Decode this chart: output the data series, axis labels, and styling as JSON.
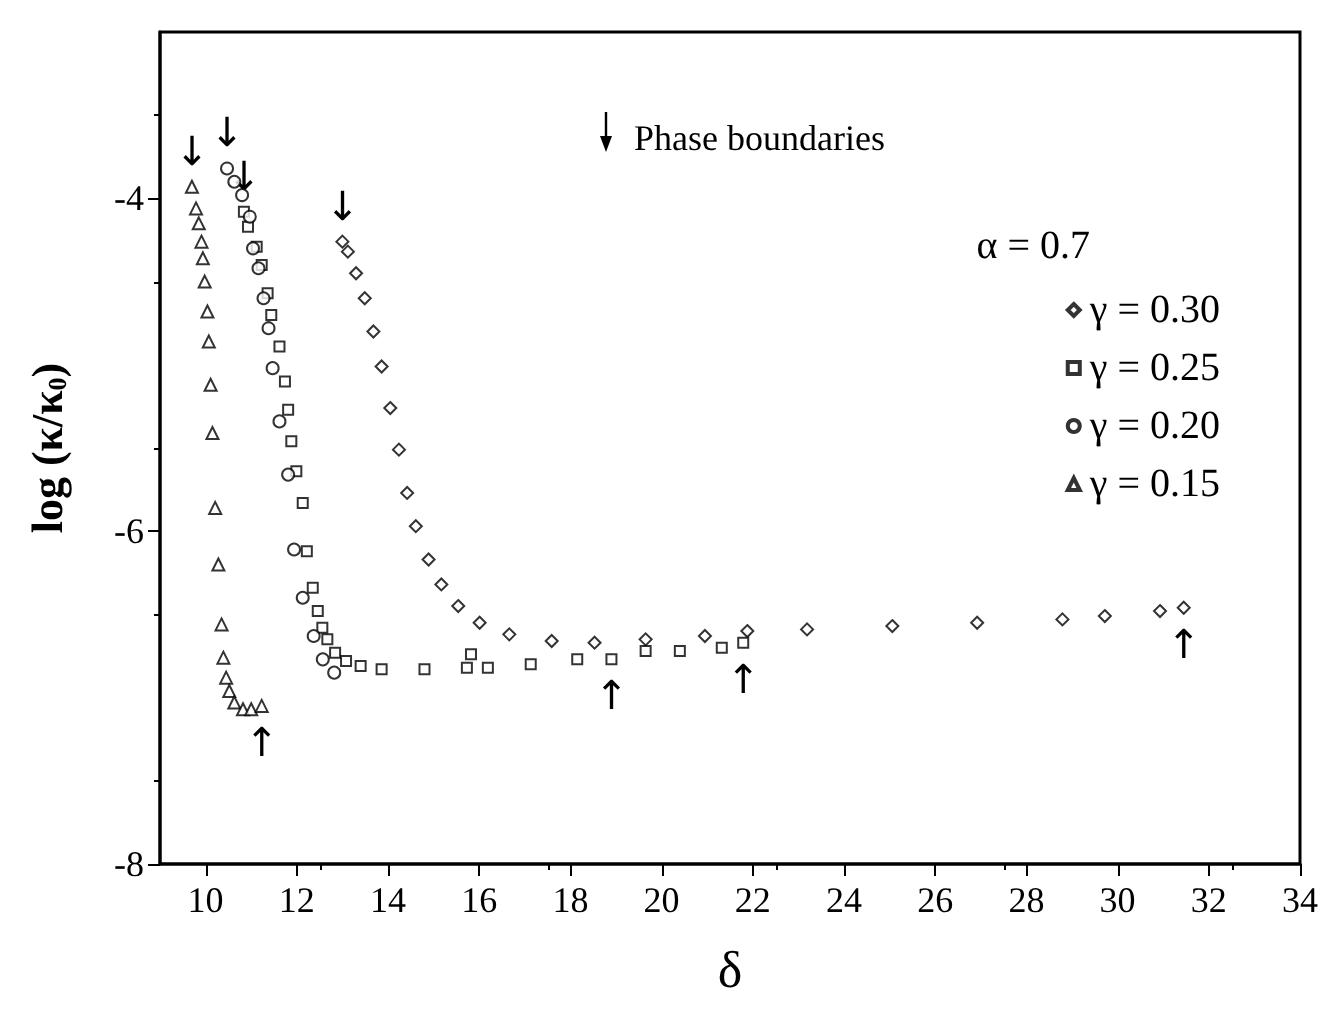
{
  "chart_data": {
    "type": "scatter",
    "xlabel": "δ",
    "ylabel": "log (κ/κ$_{0}$)",
    "legend_title": "α = 0.7",
    "legend": "top right",
    "grid": false,
    "xlim": [
      9,
      34
    ],
    "xticks": [
      10,
      12,
      14,
      16,
      18,
      20,
      22,
      24,
      26,
      28,
      30,
      32,
      34
    ],
    "ylim": [
      -8,
      -3
    ],
    "yticks": [
      -8,
      -6,
      -4
    ],
    "annotations": [
      "Phase boundaries",
      {
        "text": "↓",
        "x": 9.7,
        "y": -3.93
      },
      {
        "text": "↓",
        "x": 10.47,
        "y": -3.82
      },
      {
        "text": "↓",
        "x": 10.84,
        "y": -4.08
      },
      {
        "text": "↓",
        "x": 13.0,
        "y": -4.26
      },
      {
        "text": "↑",
        "x": 11.23,
        "y": -7.05
      },
      {
        "text": "↑",
        "x": 18.9,
        "y": -6.77
      },
      {
        "text": "↑",
        "x": 21.79,
        "y": -6.67
      },
      {
        "text": "↑",
        "x": 31.45,
        "y": -6.46
      }
    ],
    "series": [
      {
        "name": "γ = 0.30",
        "color": "#000000",
        "marker": "diamond",
        "x": [
          13.0,
          13.12,
          13.3,
          13.49,
          13.68,
          13.86,
          14.05,
          14.24,
          14.42,
          14.61,
          14.89,
          15.17,
          15.54,
          16.01,
          16.66,
          17.59,
          18.53,
          19.65,
          20.95,
          21.88,
          23.19,
          25.06,
          26.92,
          28.79,
          29.72,
          30.93,
          31.45
        ],
        "values": [
          -4.26,
          -4.32,
          -4.45,
          -4.6,
          -4.8,
          -5.01,
          -5.26,
          -5.51,
          -5.77,
          -5.97,
          -6.17,
          -6.32,
          -6.45,
          -6.55,
          -6.62,
          -6.66,
          -6.67,
          -6.65,
          -6.63,
          -6.6,
          -6.59,
          -6.57,
          -6.55,
          -6.53,
          -6.51,
          -6.48,
          -6.46
        ]
      },
      {
        "name": "γ = 0.25",
        "color": "#000000",
        "marker": "square",
        "x": [
          10.84,
          10.93,
          11.12,
          11.23,
          11.36,
          11.44,
          11.62,
          11.74,
          11.81,
          11.88,
          11.99,
          12.13,
          12.22,
          12.35,
          12.46,
          12.56,
          12.67,
          12.84,
          13.08,
          13.4,
          13.86,
          14.8,
          15.73,
          15.82,
          16.19,
          17.13,
          18.15,
          18.9,
          19.65,
          20.4,
          21.32,
          21.79
        ],
        "values": [
          -4.08,
          -4.17,
          -4.29,
          -4.4,
          -4.57,
          -4.7,
          -4.89,
          -5.1,
          -5.27,
          -5.46,
          -5.64,
          -5.83,
          -6.12,
          -6.34,
          -6.48,
          -6.58,
          -6.65,
          -6.73,
          -6.78,
          -6.81,
          -6.83,
          -6.83,
          -6.82,
          -6.74,
          -6.82,
          -6.8,
          -6.77,
          -6.77,
          -6.72,
          -6.72,
          -6.7,
          -6.67
        ]
      },
      {
        "name": "γ = 0.20",
        "color": "#000000",
        "marker": "circle",
        "x": [
          10.47,
          10.63,
          10.8,
          10.97,
          11.04,
          11.16,
          11.27,
          11.38,
          11.47,
          11.62,
          11.81,
          11.94,
          12.13,
          12.37,
          12.57,
          12.82
        ],
        "values": [
          -3.82,
          -3.9,
          -3.98,
          -4.11,
          -4.3,
          -4.42,
          -4.6,
          -4.78,
          -5.02,
          -5.34,
          -5.66,
          -6.11,
          -6.4,
          -6.63,
          -6.77,
          -6.85
        ]
      },
      {
        "name": "γ = 0.15",
        "color": "#000000",
        "marker": "triangle",
        "x": [
          9.7,
          9.79,
          9.85,
          9.91,
          9.94,
          9.98,
          10.04,
          10.07,
          10.11,
          10.15,
          10.21,
          10.28,
          10.35,
          10.39,
          10.45,
          10.52,
          10.63,
          10.82,
          11.0,
          11.23
        ],
        "values": [
          -3.93,
          -4.06,
          -4.15,
          -4.26,
          -4.36,
          -4.5,
          -4.68,
          -4.86,
          -5.12,
          -5.41,
          -5.86,
          -6.2,
          -6.56,
          -6.76,
          -6.88,
          -6.96,
          -7.03,
          -7.07,
          -7.07,
          -7.05
        ]
      }
    ]
  }
}
